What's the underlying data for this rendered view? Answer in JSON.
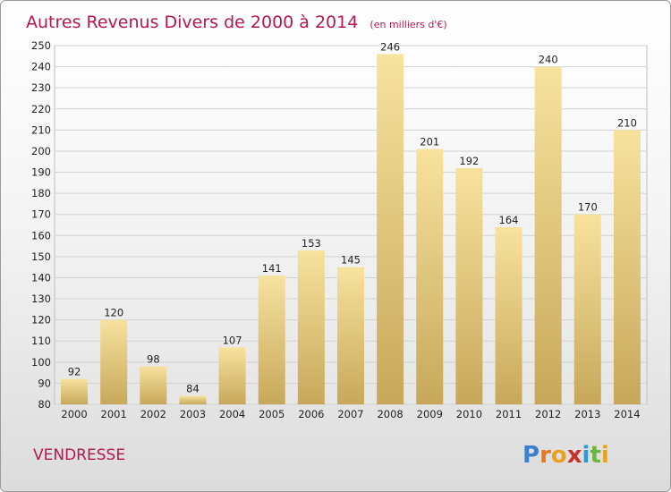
{
  "chart_data": {
    "type": "bar",
    "title": "Autres Revenus Divers de 2000 à 2014",
    "unit_note": "(en milliers d'€)",
    "categories": [
      "2000",
      "2001",
      "2002",
      "2003",
      "2004",
      "2005",
      "2006",
      "2007",
      "2008",
      "2009",
      "2010",
      "2011",
      "2012",
      "2013",
      "2014"
    ],
    "values": [
      92,
      120,
      98,
      84,
      107,
      141,
      153,
      145,
      246,
      201,
      192,
      164,
      240,
      170,
      210
    ],
    "ylim": [
      80,
      250
    ],
    "yticks": [
      80,
      90,
      100,
      110,
      120,
      130,
      140,
      150,
      160,
      170,
      180,
      190,
      200,
      210,
      220,
      230,
      240,
      250
    ],
    "grid": true,
    "legend": "none"
  },
  "commune": "VENDRESSE",
  "logo": {
    "text": "Proxiti",
    "letters": [
      {
        "ch": "P",
        "color": "#3a7fd0"
      },
      {
        "ch": "r",
        "color": "#e8771e"
      },
      {
        "ch": "o",
        "color": "#e8a21e"
      },
      {
        "ch": "x",
        "color": "#c8322b"
      },
      {
        "ch": "i",
        "color": "#2f9ad6"
      },
      {
        "ch": "t",
        "color": "#6cb33f"
      },
      {
        "ch": "i",
        "color": "#e8a21e"
      }
    ]
  },
  "colors": {
    "title": "#b5174f",
    "bar_top": "#f7e29e",
    "bar_bottom": "#c7a85a",
    "grid": "#d2d2d2"
  }
}
